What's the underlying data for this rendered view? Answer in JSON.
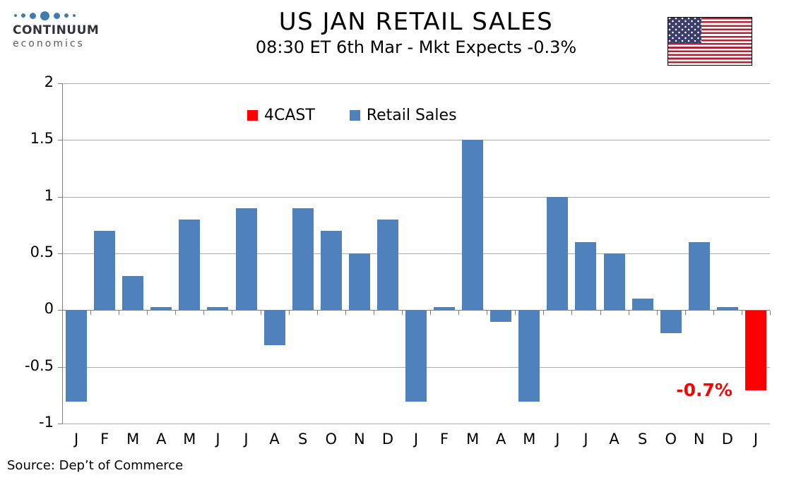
{
  "logo": {
    "brand": "CONTINUUM",
    "sub": "economics",
    "dot_color": "#3F7CAD",
    "dot_sizes": [
      4,
      6,
      9,
      13,
      9,
      6,
      4
    ]
  },
  "header": {
    "title": "US JAN RETAIL SALES",
    "subtitle": "08:30 ET 6th Mar - Mkt Expects -0.3%"
  },
  "flag": {
    "stripe_red": "#B22234",
    "canton_blue": "#3C3B6E"
  },
  "source": {
    "text": "Source: Dep’t of Commerce"
  },
  "chart_data": {
    "type": "bar",
    "title": "US JAN RETAIL SALES",
    "subtitle": "08:30 ET 6th Mar - Mkt Expects -0.3%",
    "categories": [
      "J",
      "F",
      "M",
      "A",
      "M",
      "J",
      "J",
      "A",
      "S",
      "O",
      "N",
      "D",
      "J",
      "F",
      "M",
      "A",
      "M",
      "J",
      "J",
      "A",
      "S",
      "O",
      "N",
      "D",
      "J"
    ],
    "series": [
      {
        "name": "4CAST",
        "color": "#FF0000",
        "values": [
          null,
          null,
          null,
          null,
          null,
          null,
          null,
          null,
          null,
          null,
          null,
          null,
          null,
          null,
          null,
          null,
          null,
          null,
          null,
          null,
          null,
          null,
          null,
          null,
          -0.7
        ]
      },
      {
        "name": "Retail Sales",
        "color": "#4F81BD",
        "values": [
          -0.8,
          0.7,
          0.3,
          0.03,
          0.8,
          0.03,
          0.9,
          -0.3,
          0.9,
          0.7,
          0.5,
          0.8,
          -0.8,
          0.03,
          1.5,
          -0.1,
          -0.8,
          1.0,
          0.6,
          0.5,
          0.1,
          -0.2,
          0.6,
          0.03,
          null
        ]
      }
    ],
    "ylim": [
      -1,
      2
    ],
    "yticks": [
      2,
      1.5,
      1,
      0.5,
      0,
      -0.5,
      -1
    ],
    "ytick_labels": [
      "2",
      "1.5",
      "1",
      "0.5",
      "0",
      "-0.5",
      "-1"
    ],
    "grid": true,
    "legend_position": "top-center",
    "annotations": [
      {
        "text": "-0.7%",
        "category_index": 24,
        "value": -0.7,
        "color": "#FF0000"
      }
    ],
    "axis_color": "#7F7F7F",
    "grid_color": "#ABABAB",
    "xlabel": "",
    "ylabel": ""
  }
}
